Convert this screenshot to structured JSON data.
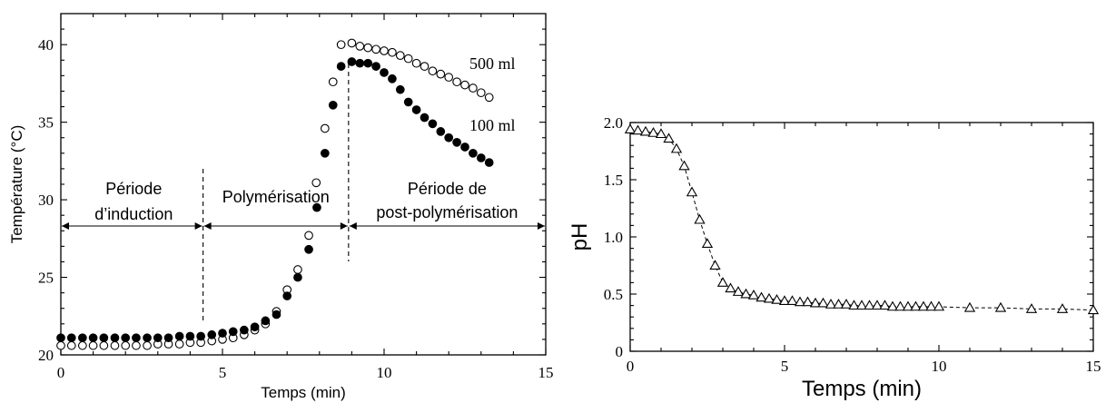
{
  "chart_data": [
    {
      "type": "scatter",
      "xlabel": "Temps (min)",
      "ylabel": "Température (°C)",
      "xlim": [
        0,
        15
      ],
      "ylim": [
        20,
        42
      ],
      "xticks": [
        0,
        5,
        10,
        15
      ],
      "yticks": [
        20,
        25,
        30,
        35,
        40
      ],
      "series": [
        {
          "name": "500 ml",
          "marker": "open-circle",
          "x": [
            0,
            0.33,
            0.67,
            1.0,
            1.33,
            1.67,
            2.0,
            2.33,
            2.67,
            3.0,
            3.33,
            3.67,
            4.0,
            4.33,
            4.67,
            5.0,
            5.33,
            5.67,
            6.0,
            6.33,
            6.67,
            7.0,
            7.33,
            7.67,
            7.9,
            8.17,
            8.42,
            8.67,
            9.0,
            9.25,
            9.5,
            9.75,
            10.0,
            10.25,
            10.5,
            10.75,
            11.0,
            11.25,
            11.5,
            11.75,
            12.0,
            12.25,
            12.5,
            12.75,
            13.0,
            13.25
          ],
          "y": [
            20.6,
            20.6,
            20.6,
            20.6,
            20.6,
            20.6,
            20.6,
            20.6,
            20.6,
            20.7,
            20.7,
            20.7,
            20.8,
            20.8,
            20.9,
            21.0,
            21.1,
            21.3,
            21.6,
            22.0,
            22.8,
            24.2,
            25.5,
            27.7,
            31.1,
            34.6,
            37.6,
            40.0,
            40.1,
            39.9,
            39.8,
            39.7,
            39.6,
            39.5,
            39.3,
            39.1,
            38.8,
            38.6,
            38.3,
            38.1,
            37.9,
            37.6,
            37.4,
            37.2,
            36.9,
            36.6
          ]
        },
        {
          "name": "100 ml",
          "marker": "filled-circle",
          "x": [
            0,
            0.33,
            0.67,
            1.0,
            1.33,
            1.67,
            2.0,
            2.33,
            2.67,
            3.0,
            3.33,
            3.67,
            4.0,
            4.33,
            4.67,
            5.0,
            5.33,
            5.67,
            6.0,
            6.33,
            6.67,
            7.0,
            7.33,
            7.67,
            7.92,
            8.17,
            8.42,
            8.67,
            9.0,
            9.25,
            9.5,
            9.75,
            10.0,
            10.25,
            10.5,
            10.75,
            11.0,
            11.25,
            11.5,
            11.75,
            12.0,
            12.25,
            12.5,
            12.75,
            13.0,
            13.25
          ],
          "y": [
            21.1,
            21.1,
            21.1,
            21.1,
            21.1,
            21.1,
            21.1,
            21.1,
            21.1,
            21.1,
            21.1,
            21.2,
            21.2,
            21.2,
            21.3,
            21.4,
            21.5,
            21.6,
            21.8,
            22.2,
            22.6,
            23.8,
            25.0,
            26.8,
            29.5,
            33.0,
            36.1,
            38.6,
            38.9,
            38.8,
            38.8,
            38.6,
            38.2,
            37.8,
            37.1,
            36.3,
            35.8,
            35.3,
            34.9,
            34.4,
            34.0,
            33.7,
            33.4,
            33.0,
            32.7,
            32.4
          ]
        }
      ],
      "annotations": {
        "series_labels": [
          "500 ml",
          "100 ml"
        ],
        "phases": [
          {
            "line1": "Période",
            "line2": "d’induction"
          },
          {
            "line1": "Polymérisation",
            "line2": ""
          },
          {
            "line1": "Période de",
            "line2": "post-polymérisation"
          }
        ],
        "phase_boundaries_x": [
          4.4,
          8.9
        ]
      }
    },
    {
      "type": "line",
      "marker": "open-triangle",
      "xlabel": "Temps (min)",
      "ylabel": "pH",
      "xlim": [
        0,
        15
      ],
      "ylim": [
        0,
        2.0
      ],
      "xticks": [
        0,
        5,
        10,
        15
      ],
      "yticks": [
        0,
        0.5,
        1.0,
        1.5,
        2.0
      ],
      "ytick_labels": [
        "0",
        "0.5",
        "1.0",
        "1.5",
        "2.0"
      ],
      "series": [
        {
          "x": [
            0,
            0.25,
            0.5,
            0.75,
            1.0,
            1.25,
            1.5,
            1.75,
            2.0,
            2.25,
            2.5,
            2.75,
            3.0,
            3.25,
            3.5,
            3.75,
            4.0,
            4.25,
            4.5,
            4.75,
            5.0,
            5.25,
            5.5,
            5.75,
            6.0,
            6.25,
            6.5,
            6.75,
            7.0,
            7.25,
            7.5,
            7.75,
            8.0,
            8.25,
            8.5,
            8.75,
            9.0,
            9.25,
            9.5,
            9.75,
            10.0,
            11.0,
            12.0,
            13.0,
            14.0,
            15.0
          ],
          "y": [
            1.94,
            1.93,
            1.92,
            1.91,
            1.9,
            1.86,
            1.77,
            1.62,
            1.39,
            1.15,
            0.94,
            0.75,
            0.6,
            0.55,
            0.52,
            0.5,
            0.49,
            0.47,
            0.46,
            0.45,
            0.44,
            0.44,
            0.43,
            0.43,
            0.42,
            0.42,
            0.41,
            0.41,
            0.41,
            0.4,
            0.4,
            0.4,
            0.4,
            0.4,
            0.39,
            0.39,
            0.39,
            0.39,
            0.39,
            0.39,
            0.39,
            0.38,
            0.38,
            0.37,
            0.37,
            0.36
          ]
        }
      ]
    }
  ]
}
